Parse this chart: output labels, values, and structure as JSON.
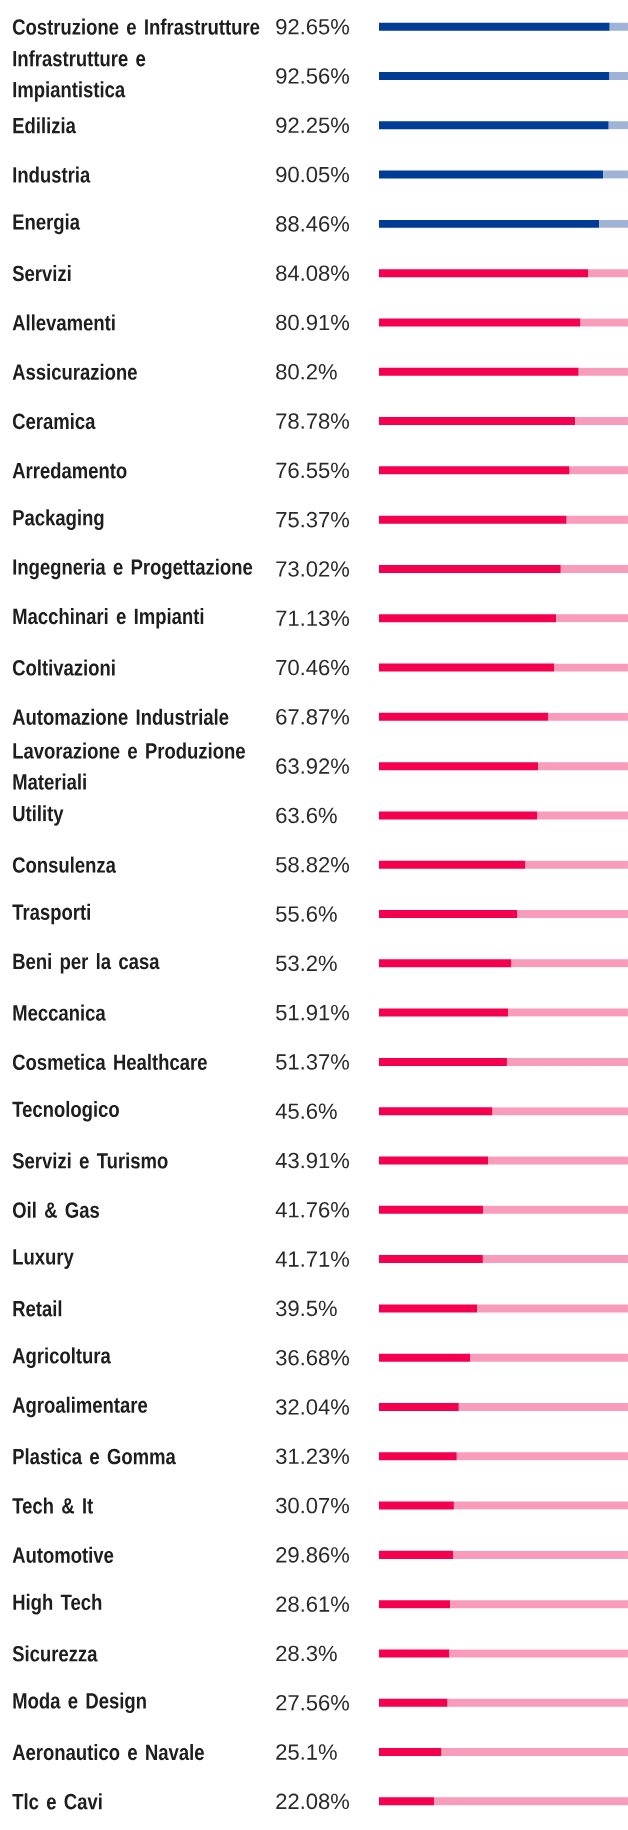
{
  "chart_data": {
    "type": "bar",
    "orientation": "horizontal",
    "stacked": true,
    "tick_labels": "y",
    "categories": [
      "Costruzione e Infrastrutture",
      "Infrastrutture e Impiantistica",
      "Edilizia",
      "Industria",
      "Energia",
      "Servizi",
      "Allevamenti",
      "Assicurazione",
      "Ceramica",
      "Arredamento",
      "Packaging",
      "Ingegneria e Progettazione",
      "Macchinari e Impianti",
      "Coltivazioni",
      "Automazione Industriale",
      "Lavorazione e Produzione Materiali",
      "Utility",
      "Consulenza",
      "Trasporti",
      "Beni per la casa",
      "Meccanica",
      "Cosmetica Healthcare",
      "Tecnologico",
      "Servizi e Turismo",
      "Oil & Gas",
      "Luxury",
      "Retail",
      "Agricoltura",
      "Agroalimentare",
      "Plastica e Gomma",
      "Tech & It",
      "Automotive",
      "High Tech",
      "Sicurezza",
      "Moda e Design",
      "Aeronautico e Navale",
      "Tlc e Cavi"
    ],
    "xlim": [
      0,
      100
    ],
    "series": [
      {
        "colors": [
          "#003b95",
          "#003b95",
          "#003b95",
          "#003b95",
          "#003b95",
          "#f4004f",
          "#f4004f",
          "#f4004f",
          "#f4004f",
          "#f4004f",
          "#f4004f",
          "#f4004f",
          "#f4004f",
          "#f4004f",
          "#f4004f",
          "#f4004f",
          "#f4004f",
          "#f4004f",
          "#f4004f",
          "#f4004f",
          "#f4004f",
          "#f4004f",
          "#f4004f",
          "#f4004f",
          "#f4004f",
          "#f4004f",
          "#f4004f",
          "#f4004f",
          "#f4004f",
          "#f4004f",
          "#f4004f",
          "#f4004f",
          "#f4004f",
          "#f4004f",
          "#f4004f",
          "#f4004f",
          "#f4004f"
        ],
        "values": [
          92.65,
          92.56,
          92.25,
          90.05,
          88.46,
          84.08,
          80.91,
          80.2,
          78.78,
          76.55,
          75.37,
          73.02,
          71.13,
          70.46,
          67.87,
          63.92,
          63.6,
          58.82,
          55.6,
          53.2,
          51.91,
          51.37,
          45.6,
          43.91,
          41.76,
          41.71,
          39.5,
          36.68,
          32.04,
          31.23,
          30.07,
          29.86,
          28.61,
          28.3,
          27.56,
          25.1,
          22.08
        ],
        "value_labels": [
          "92.65%",
          "92.56%",
          "92.25%",
          "90.05%",
          "88.46%",
          "84.08%",
          "80.91%",
          "80.2%",
          "78.78%",
          "76.55%",
          "75.37%",
          "73.02%",
          "71.13%",
          "70.46%",
          "67.87%",
          "63.92%",
          "63.6%",
          "58.82%",
          "55.6%",
          "53.2%",
          "51.91%",
          "51.37%",
          "45.6%",
          "43.91%",
          "41.76%",
          "41.71%",
          "39.5%",
          "36.68%",
          "32.04%",
          "31.23%",
          "30.07%",
          "29.86%",
          "28.61%",
          "28.3%",
          "27.56%",
          "25.1%",
          "22.08%"
        ]
      },
      {
        "colors": [
          "#9fb3d7",
          "#9fb3d7",
          "#9fb3d7",
          "#9fb3d7",
          "#9fb3d7",
          "#f99cbb",
          "#f99cbb",
          "#f99cbb",
          "#f99cbb",
          "#f99cbb",
          "#f99cbb",
          "#f99cbb",
          "#f99cbb",
          "#f99cbb",
          "#f99cbb",
          "#f99cbb",
          "#f99cbb",
          "#f99cbb",
          "#f99cbb",
          "#f99cbb",
          "#f99cbb",
          "#f99cbb",
          "#f99cbb",
          "#f99cbb",
          "#f99cbb",
          "#f99cbb",
          "#f99cbb",
          "#f99cbb",
          "#f99cbb",
          "#f99cbb",
          "#f99cbb",
          "#f99cbb",
          "#f99cbb",
          "#f99cbb",
          "#f99cbb",
          "#f99cbb",
          "#f99cbb"
        ],
        "values": [
          7.35,
          7.44,
          7.75,
          9.95,
          11.54,
          15.92,
          19.09,
          19.8,
          21.22,
          23.45,
          24.63,
          26.98,
          28.87,
          29.54,
          32.13,
          36.08,
          36.4,
          41.18,
          44.4,
          46.8,
          48.09,
          48.63,
          54.4,
          56.09,
          58.24,
          58.29,
          60.5,
          63.32,
          67.96,
          68.77,
          69.93,
          70.14,
          71.39,
          71.7,
          72.44,
          74.9,
          77.92
        ]
      }
    ]
  }
}
